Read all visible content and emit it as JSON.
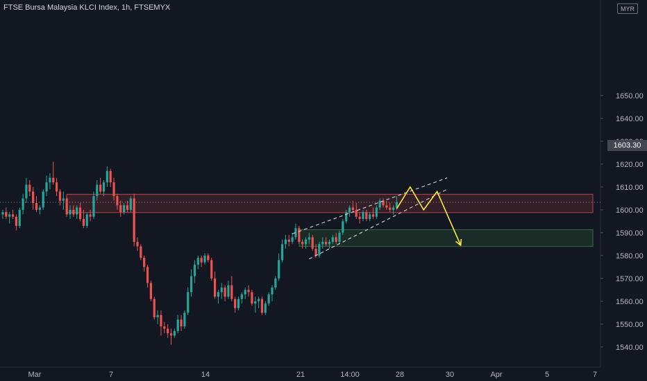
{
  "header": {
    "symbol_title": "FTSE Bursa Malaysia KLCI Index, 1h, FTSEMYX",
    "currency": "MYR",
    "last_price": "1603.30"
  },
  "colors": {
    "background": "#131722",
    "up": "#26a69a",
    "down": "#ef5350",
    "axis_text": "#b2b5be",
    "resistance_zone": "#ef5350",
    "support_zone": "#4caf50",
    "projection": "#ffeb3b",
    "trendline": "#d1d4dc"
  },
  "chart_data": {
    "type": "candlestick",
    "title": "FTSE Bursa Malaysia KLCI Index, 1h, FTSEMYX",
    "y_axis": {
      "position": "right",
      "ylim": [
        1533,
        1651
      ],
      "ticks": [
        "1540.00",
        "1550.00",
        "1560.00",
        "1570.00",
        "1580.00",
        "1590.00",
        "1600.00",
        "1610.00",
        "1620.00",
        "1630.00",
        "1640.00",
        "1650.00"
      ]
    },
    "x_axis": {
      "ticks": [
        "Mar",
        "7",
        "14",
        "21",
        "14:00",
        "28",
        "30",
        "Apr",
        "5",
        "7"
      ]
    },
    "annotations": {
      "resistance_zone": [
        1598.8,
        1606.8
      ],
      "support_zone": [
        1584.0,
        1591.3
      ],
      "last_price": 1603.3
    },
    "candles_ohlc": [
      [
        1598,
        1600,
        1596,
        1599
      ],
      [
        1599,
        1601,
        1596,
        1597
      ],
      [
        1597,
        1599,
        1594,
        1598
      ],
      [
        1598,
        1600,
        1596,
        1597
      ],
      [
        1597,
        1598,
        1591,
        1593
      ],
      [
        1593,
        1601,
        1592,
        1600
      ],
      [
        1600,
        1607,
        1598,
        1605
      ],
      [
        1605,
        1614,
        1603,
        1611
      ],
      [
        1611,
        1613,
        1606,
        1608
      ],
      [
        1608,
        1610,
        1600,
        1603
      ],
      [
        1603,
        1606,
        1599,
        1600
      ],
      [
        1600,
        1602,
        1598,
        1601
      ],
      [
        1601,
        1609,
        1600,
        1608
      ],
      [
        1608,
        1615,
        1606,
        1612
      ],
      [
        1612,
        1616,
        1609,
        1614
      ],
      [
        1614,
        1621,
        1611,
        1612
      ],
      [
        1612,
        1614,
        1606,
        1608
      ],
      [
        1608,
        1609,
        1602,
        1604
      ],
      [
        1604,
        1608,
        1600,
        1605
      ],
      [
        1605,
        1606,
        1597,
        1598
      ],
      [
        1598,
        1602,
        1596,
        1600
      ],
      [
        1600,
        1602,
        1597,
        1598
      ],
      [
        1598,
        1602,
        1596,
        1601
      ],
      [
        1601,
        1603,
        1595,
        1596
      ],
      [
        1596,
        1600,
        1592,
        1593
      ],
      [
        1593,
        1599,
        1592,
        1598
      ],
      [
        1598,
        1600,
        1595,
        1597
      ],
      [
        1597,
        1608,
        1596,
        1606
      ],
      [
        1606,
        1613,
        1604,
        1611
      ],
      [
        1611,
        1614,
        1607,
        1608
      ],
      [
        1608,
        1613,
        1606,
        1612
      ],
      [
        1612,
        1619,
        1610,
        1617
      ],
      [
        1617,
        1618,
        1610,
        1612
      ],
      [
        1612,
        1614,
        1604,
        1606
      ],
      [
        1606,
        1607,
        1600,
        1602
      ],
      [
        1602,
        1604,
        1597,
        1599
      ],
      [
        1599,
        1603,
        1598,
        1602
      ],
      [
        1602,
        1604,
        1599,
        1600
      ],
      [
        1600,
        1606,
        1599,
        1605
      ],
      [
        1605,
        1607,
        1584,
        1586
      ],
      [
        1586,
        1588,
        1582,
        1584
      ],
      [
        1584,
        1585,
        1578,
        1579
      ],
      [
        1579,
        1580,
        1573,
        1575
      ],
      [
        1575,
        1576,
        1566,
        1568
      ],
      [
        1568,
        1569,
        1560,
        1561
      ],
      [
        1561,
        1562,
        1552,
        1553
      ],
      [
        1553,
        1556,
        1550,
        1554
      ],
      [
        1554,
        1556,
        1545,
        1549
      ],
      [
        1549,
        1551,
        1546,
        1548
      ],
      [
        1548,
        1550,
        1544,
        1546
      ],
      [
        1546,
        1548,
        1541,
        1545
      ],
      [
        1545,
        1548,
        1544,
        1547
      ],
      [
        1547,
        1554,
        1546,
        1552
      ],
      [
        1552,
        1554,
        1547,
        1549
      ],
      [
        1549,
        1556,
        1548,
        1555
      ],
      [
        1555,
        1566,
        1554,
        1564
      ],
      [
        1564,
        1574,
        1562,
        1571
      ],
      [
        1571,
        1578,
        1568,
        1576
      ],
      [
        1576,
        1580,
        1574,
        1579
      ],
      [
        1579,
        1580,
        1575,
        1577
      ],
      [
        1577,
        1581,
        1576,
        1580
      ],
      [
        1580,
        1581,
        1577,
        1578
      ],
      [
        1578,
        1579,
        1569,
        1570
      ],
      [
        1570,
        1573,
        1561,
        1562
      ],
      [
        1562,
        1565,
        1559,
        1564
      ],
      [
        1564,
        1568,
        1561,
        1566
      ],
      [
        1566,
        1567,
        1560,
        1562
      ],
      [
        1562,
        1569,
        1561,
        1567
      ],
      [
        1567,
        1571,
        1560,
        1561
      ],
      [
        1561,
        1562,
        1555,
        1557
      ],
      [
        1557,
        1562,
        1556,
        1561
      ],
      [
        1561,
        1564,
        1559,
        1563
      ],
      [
        1563,
        1566,
        1561,
        1565
      ],
      [
        1565,
        1567,
        1562,
        1564
      ],
      [
        1564,
        1565,
        1558,
        1559
      ],
      [
        1559,
        1562,
        1555,
        1560
      ],
      [
        1560,
        1562,
        1557,
        1561
      ],
      [
        1561,
        1562,
        1554,
        1555
      ],
      [
        1555,
        1560,
        1554,
        1559
      ],
      [
        1559,
        1564,
        1558,
        1563
      ],
      [
        1563,
        1567,
        1560,
        1566
      ],
      [
        1566,
        1571,
        1565,
        1570
      ],
      [
        1570,
        1581,
        1569,
        1578
      ],
      [
        1578,
        1587,
        1577,
        1585
      ],
      [
        1585,
        1589,
        1583,
        1587
      ],
      [
        1587,
        1589,
        1584,
        1586
      ],
      [
        1586,
        1590,
        1585,
        1588
      ],
      [
        1588,
        1594,
        1587,
        1592
      ],
      [
        1592,
        1593,
        1585,
        1586
      ],
      [
        1586,
        1587,
        1583,
        1585
      ],
      [
        1585,
        1588,
        1583,
        1587
      ],
      [
        1587,
        1590,
        1585,
        1588
      ],
      [
        1588,
        1589,
        1582,
        1583
      ],
      [
        1583,
        1585,
        1579,
        1580
      ],
      [
        1580,
        1586,
        1579,
        1585
      ],
      [
        1585,
        1588,
        1583,
        1586
      ],
      [
        1586,
        1588,
        1584,
        1585
      ],
      [
        1585,
        1587,
        1583,
        1586
      ],
      [
        1586,
        1589,
        1585,
        1588
      ],
      [
        1588,
        1590,
        1585,
        1586
      ],
      [
        1586,
        1591,
        1585,
        1590
      ],
      [
        1590,
        1596,
        1589,
        1595
      ],
      [
        1595,
        1600,
        1594,
        1599
      ],
      [
        1599,
        1602,
        1597,
        1601
      ],
      [
        1601,
        1604,
        1599,
        1600
      ],
      [
        1600,
        1603,
        1596,
        1597
      ],
      [
        1597,
        1599,
        1594,
        1596
      ],
      [
        1596,
        1600,
        1595,
        1599
      ],
      [
        1599,
        1600,
        1595,
        1596
      ],
      [
        1596,
        1599,
        1595,
        1598
      ],
      [
        1598,
        1601,
        1596,
        1597
      ],
      [
        1597,
        1602,
        1596,
        1601
      ],
      [
        1601,
        1605,
        1600,
        1604
      ],
      [
        1604,
        1605,
        1601,
        1602
      ],
      [
        1602,
        1604,
        1600,
        1601
      ],
      [
        1601,
        1603,
        1599,
        1600
      ],
      [
        1600,
        1602,
        1598,
        1601
      ],
      [
        1601,
        1606,
        1600,
        1603.3
      ]
    ],
    "projection_path": [
      {
        "candle": 117,
        "y": 1600.5
      },
      {
        "candle": 121,
        "y": 1610.0
      },
      {
        "candle": 125,
        "y": 1600.0
      },
      {
        "candle": 129,
        "y": 1608.0
      },
      {
        "candle": 136,
        "y": 1584.5
      }
    ],
    "trendlines": [
      {
        "from": {
          "candle": 86,
          "y": 1589.5
        },
        "to": {
          "candle": 132,
          "y": 1614.0
        }
      },
      {
        "from": {
          "candle": 91,
          "y": 1578.5
        },
        "to": {
          "candle": 132,
          "y": 1609.0
        }
      }
    ]
  }
}
